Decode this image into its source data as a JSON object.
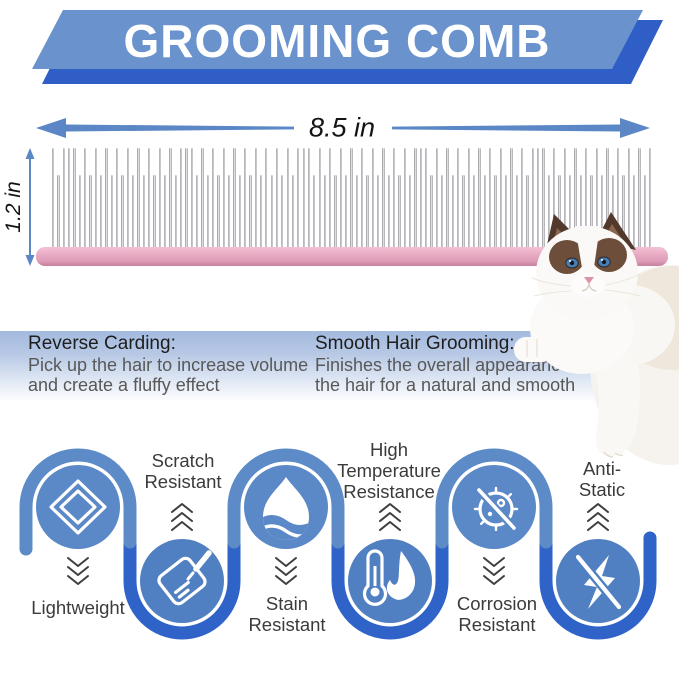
{
  "banner": {
    "title": "GROOMING COMB"
  },
  "dimensions": {
    "width_label": "8.5 in",
    "height_label": "1.2 in"
  },
  "descriptions": {
    "left": {
      "heading": "Reverse Carding:",
      "line1": "Pick up the hair to increase volume",
      "line2": "and create a fluffy effect"
    },
    "right": {
      "heading": "Smooth Hair Grooming:",
      "line1": "Finishes the overall appearance of",
      "line2": "the hair for a natural and smooth"
    }
  },
  "features": [
    {
      "label": "Lightweight",
      "icon": "cube-icon",
      "row": "top"
    },
    {
      "label": "Scratch\nResistant",
      "icon": "notepad-pencil-icon",
      "row": "bottom"
    },
    {
      "label": "Stain\nResistant",
      "icon": "water-drop-icon",
      "row": "top"
    },
    {
      "label": "High\nTemperature\nResistance",
      "icon": "thermometer-flame-icon",
      "row": "bottom"
    },
    {
      "label": "Corrosion\nResistant",
      "icon": "no-bacteria-icon",
      "row": "top"
    },
    {
      "label": "Anti-Static",
      "icon": "no-static-icon",
      "row": "bottom"
    }
  ],
  "colors": {
    "banner_light": "#6a92cc",
    "banner_dark": "#2e5ec6",
    "arrow_blue": "#5b87c6",
    "spine_pink": "#e7a8c2",
    "tube_light": "#5d8bc8",
    "tube_dark": "#2f63c8",
    "circle_top": "#5b88c7",
    "circle_bottom": "#5080c2",
    "label_text": "#3b3b3b",
    "heading_text": "#1e1e1e",
    "body_text": "#585858"
  }
}
